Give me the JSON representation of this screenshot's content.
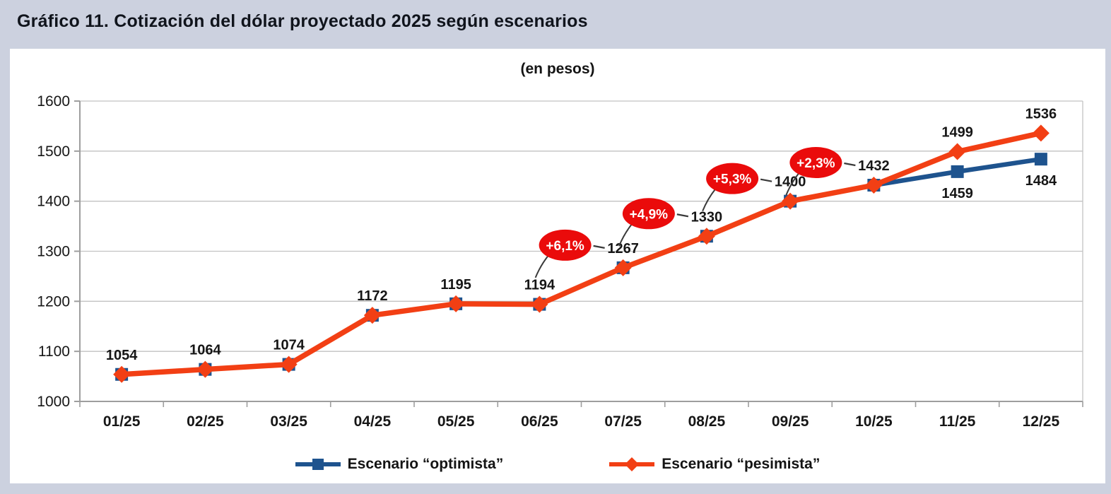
{
  "caption": "Gráfico 11. Cotización del dólar proyectado 2025 según escenarios",
  "chart_data": {
    "type": "line",
    "title": "(en pesos)",
    "categories": [
      "01/25",
      "02/25",
      "03/25",
      "04/25",
      "05/25",
      "06/25",
      "07/25",
      "08/25",
      "09/25",
      "10/25",
      "11/25",
      "12/25"
    ],
    "series": [
      {
        "name": "Escenario “optimista”",
        "color": "#1e538e",
        "marker": "square",
        "values": [
          1054,
          1064,
          1074,
          1172,
          1195,
          1194,
          1267,
          1330,
          1400,
          1432,
          1459,
          1484
        ],
        "label_months": [
          "11/25",
          "12/25"
        ],
        "label_side": "below"
      },
      {
        "name": "Escenario “pesimista”",
        "color": "#f23f14",
        "marker": "diamond",
        "values": [
          1054,
          1064,
          1074,
          1172,
          1195,
          1194,
          1267,
          1330,
          1400,
          1432,
          1499,
          1536
        ],
        "label_months": "all",
        "label_side": "above"
      }
    ],
    "ylim": [
      1000,
      1600
    ],
    "yticks": [
      1000,
      1100,
      1200,
      1300,
      1400,
      1500,
      1600
    ],
    "grid": true,
    "legend_position": "bottom",
    "annotations": [
      {
        "label": "+6,1%",
        "month": "07/25"
      },
      {
        "label": "+4,9%",
        "month": "08/25"
      },
      {
        "label": "+5,3%",
        "month": "09/25"
      },
      {
        "label": "+2,3%",
        "month": "10/25"
      }
    ],
    "annotation_color": "#ea0b0b",
    "annotation_text_color": "#ffffff"
  }
}
